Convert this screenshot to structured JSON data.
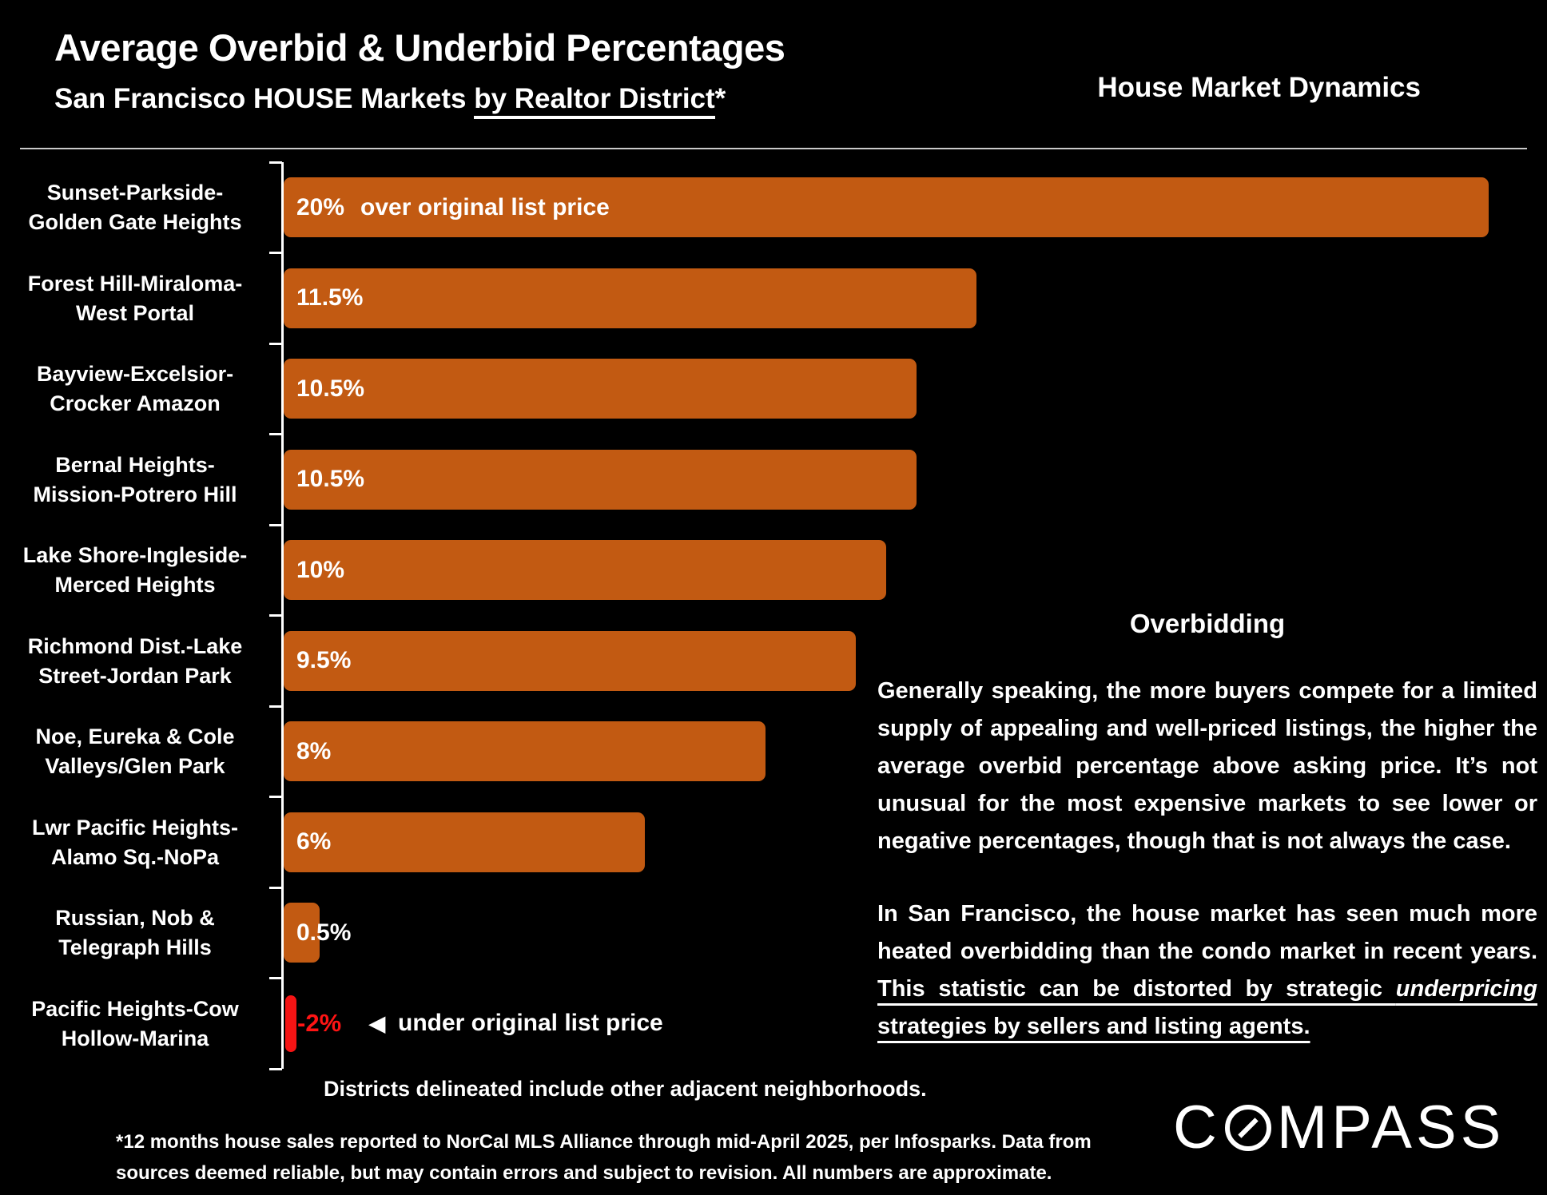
{
  "header": {
    "title": "Average Overbid & Underbid Percentages",
    "subtitle_prefix": "San Francisco HOUSE Markets ",
    "subtitle_underlined": "by Realtor District",
    "subtitle_suffix": "*",
    "corner_label": "House Market Dynamics"
  },
  "chart_data": {
    "type": "bar",
    "orientation": "horizontal",
    "unit": "%",
    "xlim": [
      -2,
      20
    ],
    "grid": false,
    "categories": [
      "Sunset-Parkside-Golden Gate Heights",
      "Forest Hill-Miraloma-West Portal",
      "Bayview-Excelsior-Crocker Amazon",
      "Bernal Heights-Mission-Potrero Hill",
      "Lake Shore-Ingleside-Merced Heights",
      "Richmond Dist.-Lake Street-Jordan Park",
      "Noe, Eureka & Cole Valleys/Glen Park",
      "Lwr Pacific Heights-Alamo Sq.-NoPa",
      "Russian, Nob & Telegraph Hills",
      "Pacific Heights-Cow Hollow-Marina"
    ],
    "category_display_lines": [
      [
        "Sunset-Parkside-",
        "Golden Gate Heights"
      ],
      [
        "Forest Hill-Miraloma-",
        "West Portal"
      ],
      [
        "Bayview-Excelsior-",
        "Crocker Amazon"
      ],
      [
        "Bernal Heights-",
        "Mission-Potrero Hill"
      ],
      [
        "Lake Shore-Ingleside-",
        "Merced Heights"
      ],
      [
        "Richmond Dist.-Lake",
        "Street-Jordan Park"
      ],
      [
        "Noe, Eureka & Cole",
        "Valleys/Glen Park"
      ],
      [
        "Lwr Pacific Heights-",
        "Alamo Sq.-NoPa"
      ],
      [
        "Russian, Nob &",
        "Telegraph Hills"
      ],
      [
        "Pacific Heights-Cow",
        "Hollow-Marina"
      ]
    ],
    "values": [
      20,
      11.5,
      10.5,
      10.5,
      10,
      9.5,
      8,
      6,
      0.5,
      -2
    ],
    "bar_labels": [
      "20%",
      "11.5%",
      "10.5%",
      "10.5%",
      "10%",
      "9.5%",
      "8%",
      "6%",
      "0.5%",
      "-2%"
    ],
    "positive_annotation": "over original list price",
    "negative_annotation": "under original list price",
    "negative_annotation_arrow": "◀",
    "bar_color": "#c25a12",
    "negative_bar_color": "#f51414",
    "negative_value_color": "#ff1414",
    "value_label_color": "#ffffff"
  },
  "side_panel": {
    "heading": "Overbidding",
    "paragraph1": "Generally speaking, the more buyers compete for a limited supply of appealing and well-priced listings, the higher the average overbid percentage above asking price. It’s not unusual for the most expensive markets to see lower or negative percentages, though that is not always the case.",
    "paragraph2_normal": "In San Francisco, the house market has seen much more heated overbidding than the condo market in recent years. ",
    "paragraph2_underline_1": "This statistic can be distorted by strategic ",
    "paragraph2_underline_italic": "underpricing",
    "paragraph2_underline_2": " strategies by sellers and listing agents."
  },
  "footer": {
    "note": "Districts delineated include other adjacent neighborhoods.",
    "footnote_lines": [
      "*12 months house sales reported to NorCal MLS Alliance through mid-April 2025, per Infosparks. Data from",
      "sources deemed reliable, but may contain errors and subject to revision. All numbers are approximate."
    ],
    "brand": "COMPASS"
  }
}
